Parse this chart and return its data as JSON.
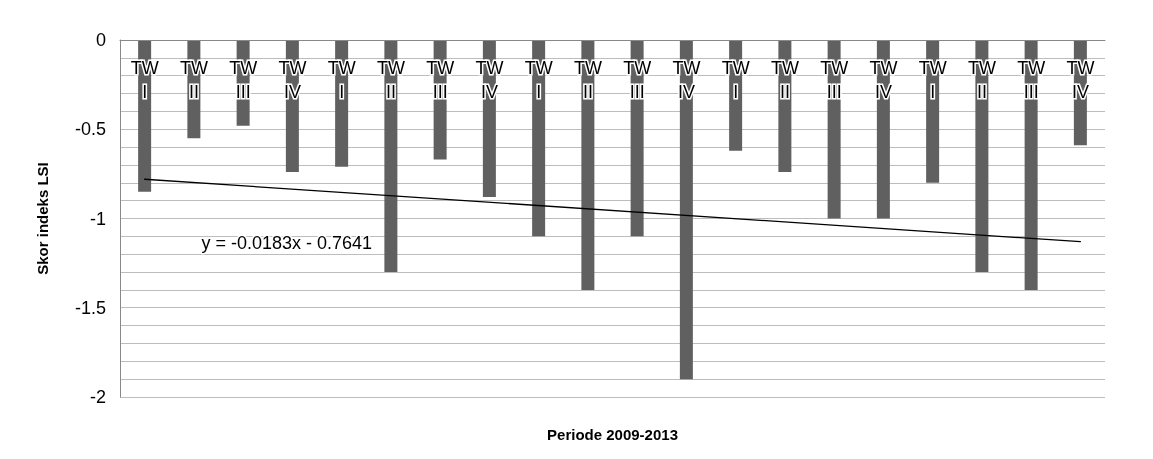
{
  "chart_data": {
    "type": "bar",
    "xlabel": "Periode 2009-2013",
    "ylabel": "Skor indeks LSI",
    "categories": [
      "TW I",
      "TW II",
      "TW III",
      "TW IV",
      "TW I",
      "TW II",
      "TW III",
      "TW IV",
      "TW I",
      "TW II",
      "TW III",
      "TW IV",
      "TW I",
      "TW II",
      "TW III",
      "TW IV",
      "TW I",
      "TW II",
      "TW III",
      "TW IV"
    ],
    "series": [
      {
        "color": "#606060",
        "values": [
          -0.85,
          -0.55,
          -0.48,
          -0.74,
          -0.71,
          -1.3,
          -0.67,
          -0.88,
          -1.1,
          -1.4,
          -1.1,
          -1.9,
          -0.62,
          -0.74,
          -1.0,
          -1.0,
          -0.8,
          -1.3,
          -1.4,
          -0.59
        ]
      },
      {
        "type": "line",
        "color": "#000000",
        "values": [
          -0.78,
          null,
          null,
          null,
          null,
          null,
          null,
          null,
          null,
          null,
          null,
          null,
          null,
          null,
          null,
          null,
          null,
          null,
          null,
          -1.13
        ]
      }
    ],
    "ylim": [
      -2,
      0
    ],
    "yticks": [
      {
        "value": -2,
        "label": "-2"
      },
      {
        "value": -1.9,
        "label": null
      },
      {
        "value": -1.8,
        "label": null
      },
      {
        "value": -1.7,
        "label": null
      },
      {
        "value": -1.6,
        "label": null
      },
      {
        "value": -1.5,
        "label": "-1.5"
      },
      {
        "value": -1.4,
        "label": null
      },
      {
        "value": -1.3,
        "label": null
      },
      {
        "value": -1.2,
        "label": null
      },
      {
        "value": -1.1,
        "label": null
      },
      {
        "value": -1,
        "label": "-1"
      },
      {
        "value": -0.9,
        "label": null
      },
      {
        "value": -0.8,
        "label": null
      },
      {
        "value": -0.7,
        "label": null
      },
      {
        "value": -0.6,
        "label": null
      },
      {
        "value": -0.5,
        "label": "-0.5"
      },
      {
        "value": -0.4,
        "label": null
      },
      {
        "value": -0.3,
        "label": null
      },
      {
        "value": -0.2,
        "label": null
      },
      {
        "value": -0.1,
        "label": null
      },
      {
        "value": 0,
        "label": "0"
      }
    ],
    "annotations": [
      "y = -0.0183x - 0.7641"
    ],
    "grid": "y"
  }
}
